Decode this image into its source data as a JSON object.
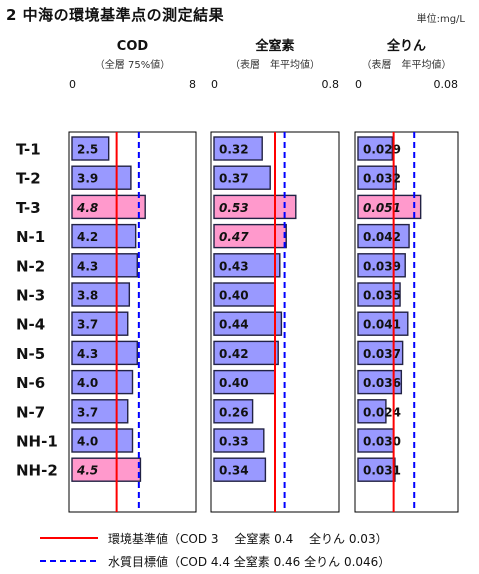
{
  "page": {
    "title": "2  中海の環境基準点の測定結果",
    "unit": "単位:mg/L"
  },
  "colors": {
    "bar_normal": "#9999ff",
    "bar_exceed": "#ff99cc",
    "standard_line": "#ff0000",
    "target_line": "#0000ff"
  },
  "legend": {
    "standard": "環境基準値（COD 3　 全窒素 0.4 　全りん 0.03）",
    "target": "水質目標値（COD 4.4  全窒素 0.46  全りん 0.046）"
  },
  "chart_data": [
    {
      "type": "bar",
      "orientation": "horizontal",
      "title": "COD",
      "subtitle": "（全層  75%値）",
      "categories": [
        "T-1",
        "T-2",
        "T-3",
        "N-1",
        "N-2",
        "N-3",
        "N-4",
        "N-5",
        "N-6",
        "N-7",
        "NH-1",
        "NH-2"
      ],
      "values": [
        2.5,
        3.9,
        4.8,
        4.2,
        4.3,
        3.8,
        3.7,
        4.3,
        4.0,
        3.7,
        4.0,
        4.5
      ],
      "value_labels": [
        "2.5",
        "3.9",
        "4.8",
        "4.2",
        "4.3",
        "3.8",
        "3.7",
        "4.3",
        "4.0",
        "3.7",
        "4.0",
        "4.5"
      ],
      "highlighted": [
        false,
        false,
        true,
        false,
        false,
        false,
        false,
        false,
        false,
        false,
        false,
        true
      ],
      "xlim": [
        0,
        8
      ],
      "ticks": [
        "0",
        "8"
      ],
      "standard": 3,
      "target": 4.4
    },
    {
      "type": "bar",
      "orientation": "horizontal",
      "title": "全窒素",
      "subtitle": "（表層　年平均値）",
      "categories": [
        "T-1",
        "T-2",
        "T-3",
        "N-1",
        "N-2",
        "N-3",
        "N-4",
        "N-5",
        "N-6",
        "N-7",
        "NH-1",
        "NH-2"
      ],
      "values": [
        0.32,
        0.37,
        0.53,
        0.47,
        0.43,
        0.4,
        0.44,
        0.42,
        0.4,
        0.26,
        0.33,
        0.34
      ],
      "value_labels": [
        "0.32",
        "0.37",
        "0.53",
        "0.47",
        "0.43",
        "0.40",
        "0.44",
        "0.42",
        "0.40",
        "0.26",
        "0.33",
        "0.34"
      ],
      "highlighted": [
        false,
        false,
        true,
        true,
        false,
        false,
        false,
        false,
        false,
        false,
        false,
        false
      ],
      "xlim": [
        0,
        0.8
      ],
      "ticks": [
        "0",
        "0.8"
      ],
      "standard": 0.4,
      "target": 0.46
    },
    {
      "type": "bar",
      "orientation": "horizontal",
      "title": "全りん",
      "subtitle": "（表層　年平均値）",
      "categories": [
        "T-1",
        "T-2",
        "T-3",
        "N-1",
        "N-2",
        "N-3",
        "N-4",
        "N-5",
        "N-6",
        "N-7",
        "NH-1",
        "NH-2"
      ],
      "values": [
        0.029,
        0.032,
        0.051,
        0.042,
        0.039,
        0.035,
        0.041,
        0.037,
        0.036,
        0.024,
        0.03,
        0.031
      ],
      "value_labels": [
        "0.029",
        "0.032",
        "0.051",
        "0.042",
        "0.039",
        "0.035",
        "0.041",
        "0.037",
        "0.036",
        "0.024",
        "0.030",
        "0.031"
      ],
      "highlighted": [
        false,
        false,
        true,
        false,
        false,
        false,
        false,
        false,
        false,
        false,
        false,
        false
      ],
      "xlim": [
        0,
        0.08
      ],
      "ticks": [
        "0",
        "0.08"
      ],
      "standard": 0.03,
      "target": 0.046
    }
  ]
}
